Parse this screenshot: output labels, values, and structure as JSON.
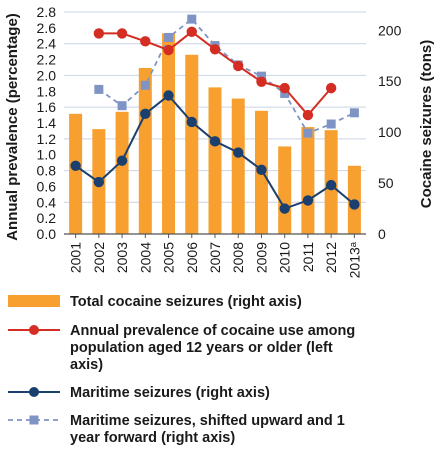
{
  "chart_data": {
    "type": "bar",
    "categories": [
      "2001",
      "2002",
      "2003",
      "2004",
      "2005",
      "2006",
      "2007",
      "2008",
      "2009",
      "2010",
      "2011",
      "2012",
      "2013ᵃ"
    ],
    "ylabel_left": "Annual prevalence (percentage)",
    "ylabel_right": "Cocaine seizures (tons)",
    "ylim_left": [
      0,
      2.8
    ],
    "ylim_right": [
      0,
      218
    ],
    "left_ticks": [
      "0.0",
      "0.2",
      "0.4",
      "0.6",
      "0.8",
      "1.0",
      "1.2",
      "1.4",
      "1.6",
      "1.8",
      "2.0",
      "2.2",
      "2.4",
      "2.6",
      "2.8"
    ],
    "right_ticks": [
      "0",
      "50",
      "100",
      "150",
      "200"
    ],
    "grid": "horizontal",
    "legend_position": "bottom",
    "colors": {
      "bars": "#f7a030",
      "prevalence": "#d42e24",
      "maritime": "#1b3f6e",
      "shifted": "#7f94c4",
      "grid": "#c9d4e8",
      "axis": "#555555"
    },
    "series": [
      {
        "name": "Total cocaine seizures (right axis)",
        "type": "bar",
        "axis": "right",
        "values": [
          118,
          103,
          120,
          163,
          197,
          176,
          144,
          133,
          121,
          86,
          105,
          102,
          67
        ]
      },
      {
        "name": "Annual prevalence of cocaine use among population aged 12 years or older (left axis)",
        "type": "line",
        "axis": "left",
        "values": [
          null,
          2.53,
          2.53,
          2.43,
          2.32,
          2.55,
          2.33,
          2.12,
          1.92,
          1.84,
          1.5,
          1.84,
          null
        ]
      },
      {
        "name": "Maritime seizures (right axis)",
        "type": "line",
        "axis": "right",
        "values": [
          67,
          51,
          72,
          118,
          136,
          110,
          91,
          80,
          63,
          25,
          33,
          48,
          29
        ]
      },
      {
        "name": "Maritime seizures, shifted upward and 1 year forward (right axis)",
        "type": "dashed-line",
        "axis": "right",
        "values": [
          null,
          142,
          126,
          146,
          193,
          211,
          185,
          166,
          155,
          138,
          99,
          108,
          119
        ]
      }
    ]
  },
  "legend": [
    {
      "key": "bars",
      "label_lines": [
        "Total cocaine seizures (right axis)"
      ]
    },
    {
      "key": "prevalence",
      "label_lines": [
        "Annual prevalence of cocaine use among",
        "population aged 12 years or older (left",
        "axis)"
      ]
    },
    {
      "key": "maritime",
      "label_lines": [
        "Maritime seizures (right axis)"
      ]
    },
    {
      "key": "shifted",
      "label_lines": [
        "Maritime seizures, shifted upward and 1",
        "year forward (right axis)"
      ]
    }
  ]
}
